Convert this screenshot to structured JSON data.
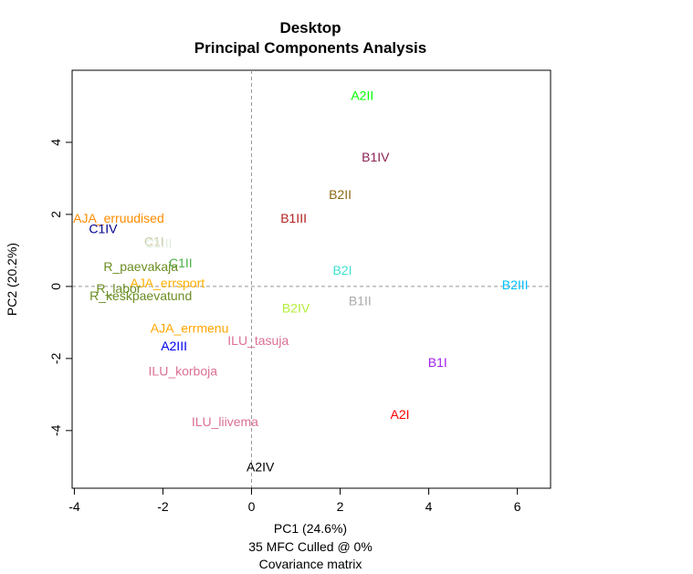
{
  "chart_data": {
    "type": "scatter",
    "title": "Desktop",
    "subtitle": "Principal Components Analysis",
    "xlabel": "PC1 (24.6%)",
    "ylabel": "PC2 (20.2%)",
    "caption_lines": [
      "35 MFC  Culled @ 0%",
      "Covariance matrix"
    ],
    "xlim": [
      -4.05,
      6.75
    ],
    "ylim": [
      -5.6,
      6.0
    ],
    "xticks": [
      -4,
      -2,
      0,
      2,
      4,
      6
    ],
    "yticks": [
      -4,
      -2,
      0,
      2,
      4
    ],
    "zero_lines": true,
    "points": [
      {
        "label": "A2II",
        "x": 2.5,
        "y": 5.3,
        "color": "#00ff00"
      },
      {
        "label": "B1IV",
        "x": 2.8,
        "y": 3.6,
        "color": "#8b2252"
      },
      {
        "label": "B2II",
        "x": 2.0,
        "y": 2.55,
        "color": "#8b6914"
      },
      {
        "label": "B1III",
        "x": 0.95,
        "y": 1.9,
        "color": "#b22222"
      },
      {
        "label": "AJA_erruudised",
        "x": -3.0,
        "y": 1.9,
        "color": "#ff8c00"
      },
      {
        "label": "C1IV",
        "x": -3.35,
        "y": 1.6,
        "color": "#00008b"
      },
      {
        "label": "C1I",
        "x": -2.2,
        "y": 1.25,
        "color": "#cdc9a5"
      },
      {
        "label": "C1III",
        "x": -2.1,
        "y": 1.2,
        "color": "#e0eee0"
      },
      {
        "label": "C1II",
        "x": -1.6,
        "y": 0.65,
        "color": "#4daf4a"
      },
      {
        "label": "R_paevakaja",
        "x": -2.5,
        "y": 0.55,
        "color": "#6b8e23"
      },
      {
        "label": "AJA_errsport",
        "x": -1.9,
        "y": 0.1,
        "color": "#ffb000"
      },
      {
        "label": "R_labor",
        "x": -3.0,
        "y": -0.05,
        "color": "#6b8e23"
      },
      {
        "label": "R_keskpaevatund",
        "x": -2.5,
        "y": -0.25,
        "color": "#6b8e23"
      },
      {
        "label": "B2I",
        "x": 2.05,
        "y": 0.45,
        "color": "#40e0d0"
      },
      {
        "label": "B2III",
        "x": 5.95,
        "y": 0.05,
        "color": "#00bfff"
      },
      {
        "label": "B1II",
        "x": 2.45,
        "y": -0.4,
        "color": "#aaaaaa"
      },
      {
        "label": "B2IV",
        "x": 1.0,
        "y": -0.6,
        "color": "#b3ee3a"
      },
      {
        "label": "AJA_errmenu",
        "x": -1.4,
        "y": -1.15,
        "color": "#ffa500"
      },
      {
        "label": "ILU_tasuja",
        "x": 0.15,
        "y": -1.5,
        "color": "#db7093"
      },
      {
        "label": "A2III",
        "x": -1.75,
        "y": -1.65,
        "color": "#0000ee"
      },
      {
        "label": "B1I",
        "x": 4.2,
        "y": -2.1,
        "color": "#a020f0"
      },
      {
        "label": "ILU_korboja",
        "x": -1.55,
        "y": -2.35,
        "color": "#db7093"
      },
      {
        "label": "A2I",
        "x": 3.35,
        "y": -3.55,
        "color": "#ff0000"
      },
      {
        "label": "ILU_liivema",
        "x": -0.6,
        "y": -3.75,
        "color": "#db7093"
      },
      {
        "label": "A2IV",
        "x": 0.2,
        "y": -5.0,
        "color": "#000000"
      }
    ]
  }
}
